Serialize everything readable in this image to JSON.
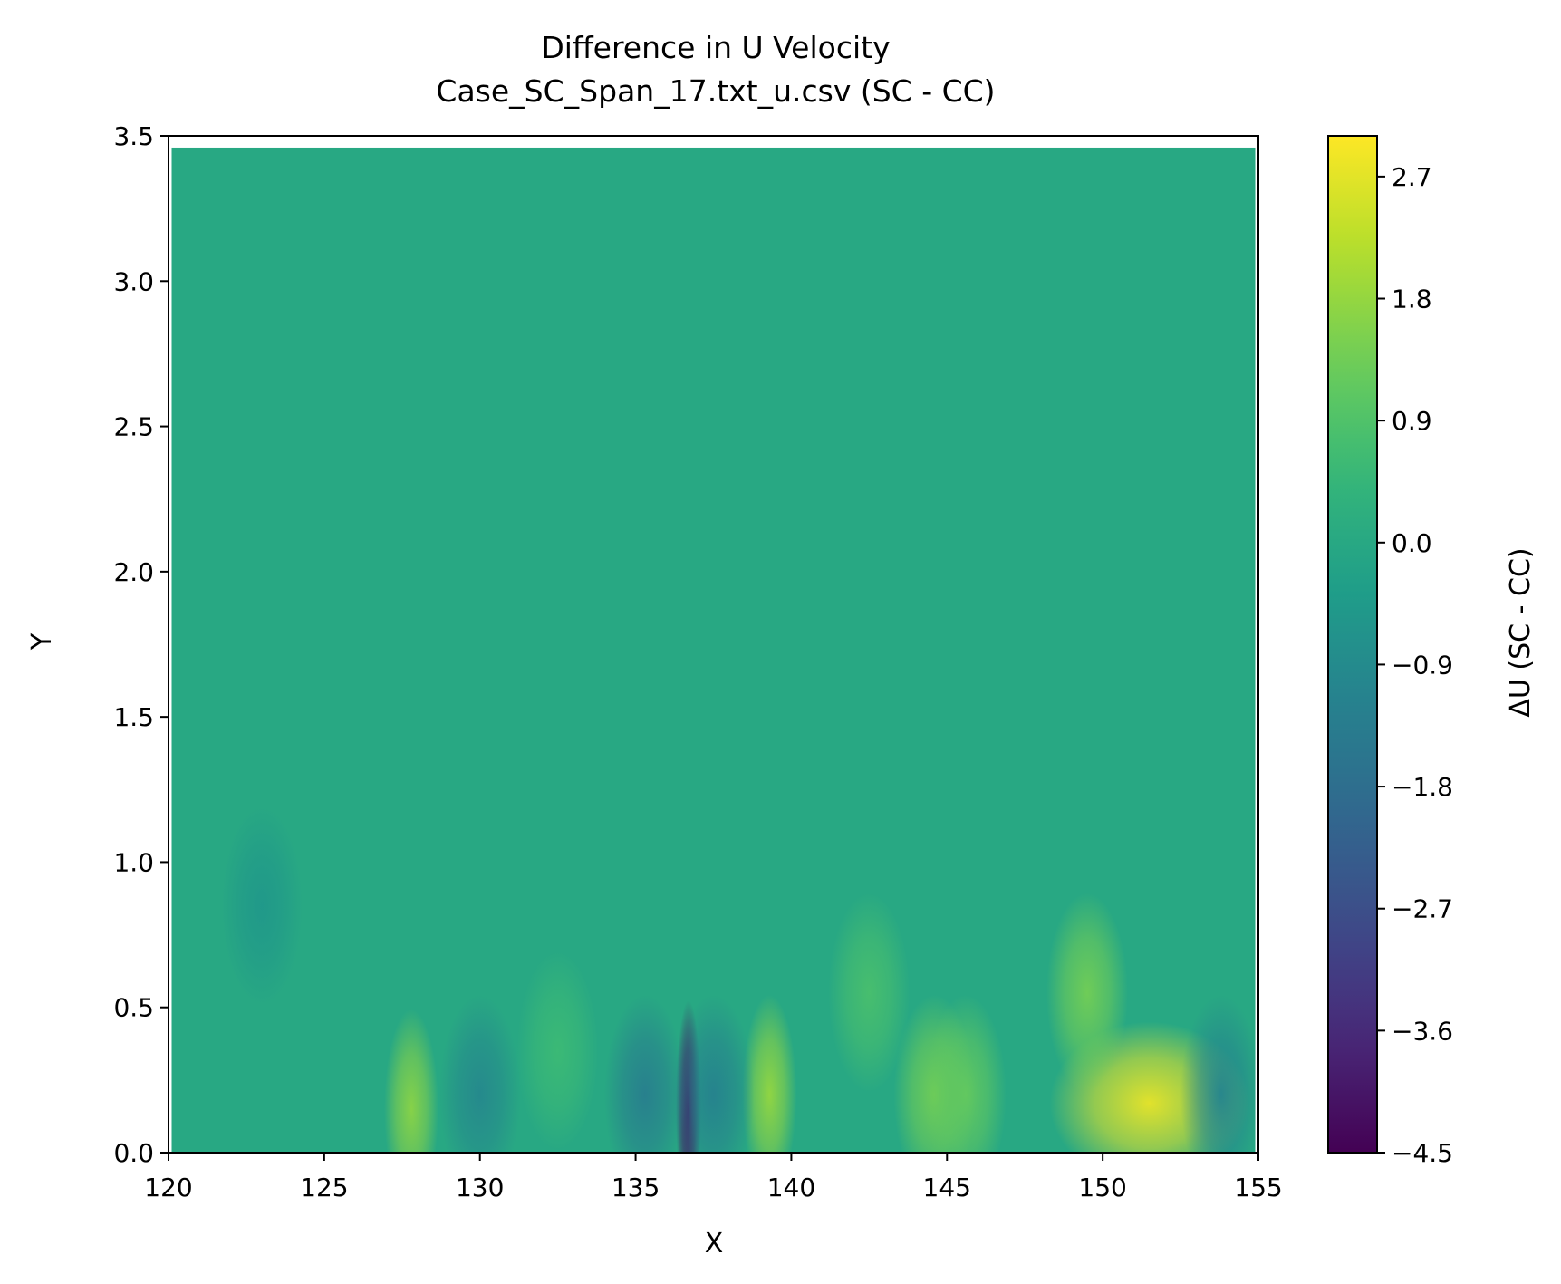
{
  "chart_data": {
    "type": "heatmap",
    "title": "Difference in U Velocity",
    "subtitle": "Case_SC_Span_17.txt_u.csv (SC - CC)",
    "xlabel": "X",
    "ylabel": "Y",
    "xlim": [
      120,
      155
    ],
    "ylim": [
      0,
      3.5
    ],
    "x_ticks": [
      "120",
      "125",
      "130",
      "135",
      "140",
      "145",
      "150",
      "155"
    ],
    "y_ticks": [
      "0.0",
      "0.5",
      "1.0",
      "1.5",
      "2.0",
      "2.5",
      "3.0",
      "3.5"
    ],
    "x_range_data": [
      120.1,
      154.9
    ],
    "y_range_data": [
      0.0,
      3.46
    ],
    "colorbar": {
      "label": "ΔU (SC - CC)",
      "range": [
        -4.5,
        3.0
      ],
      "ticks": [
        "−4.5",
        "−3.6",
        "−2.7",
        "−1.8",
        "−0.9",
        "0.0",
        "0.9",
        "1.8",
        "2.7"
      ],
      "tick_values": [
        -4.5,
        -3.6,
        -2.7,
        -1.8,
        -0.9,
        0.0,
        0.9,
        1.8,
        2.7
      ],
      "colormap": "viridis"
    },
    "baseline_value": 0.0,
    "features": [
      {
        "x": 151.5,
        "y": 0.17,
        "value": 2.8
      },
      {
        "x": 149.5,
        "y": 0.55,
        "value": 1.4
      },
      {
        "x": 139.3,
        "y": 0.2,
        "value": 1.8
      },
      {
        "x": 127.8,
        "y": 0.15,
        "value": 1.7
      },
      {
        "x": 144.6,
        "y": 0.2,
        "value": 1.4
      },
      {
        "x": 145.6,
        "y": 0.2,
        "value": 1.2
      },
      {
        "x": 136.7,
        "y": 0.15,
        "value": -4.3
      },
      {
        "x": 137.5,
        "y": 0.2,
        "value": -1.2
      },
      {
        "x": 135.3,
        "y": 0.2,
        "value": -1.3
      },
      {
        "x": 130.0,
        "y": 0.2,
        "value": -1.0
      },
      {
        "x": 123.0,
        "y": 0.85,
        "value": -0.5
      },
      {
        "x": 153.8,
        "y": 0.2,
        "value": -1.1
      },
      {
        "x": 142.5,
        "y": 0.55,
        "value": 0.8
      },
      {
        "x": 132.5,
        "y": 0.35,
        "value": 0.6
      }
    ]
  }
}
